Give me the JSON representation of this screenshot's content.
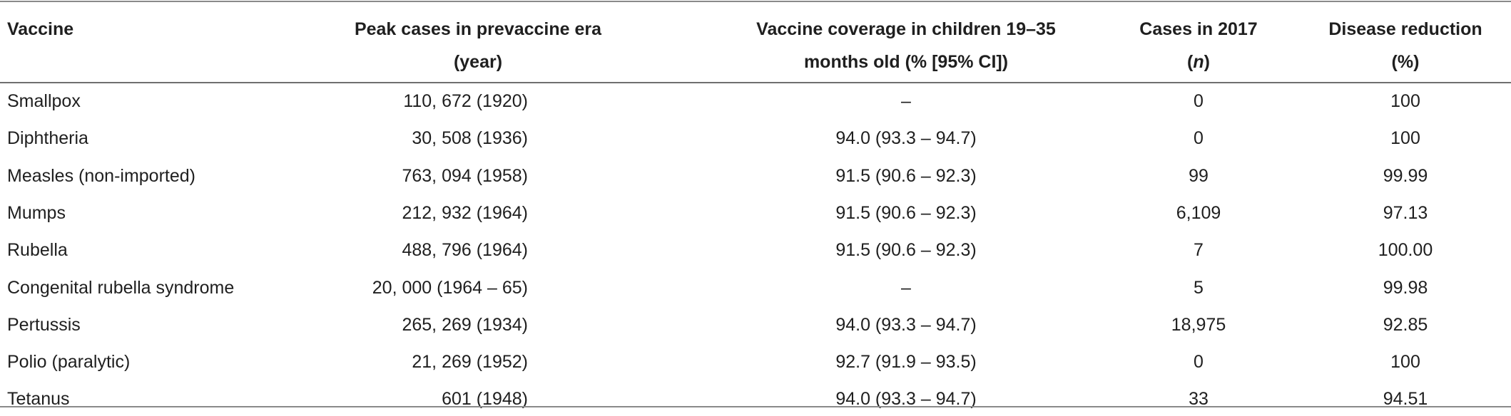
{
  "table": {
    "headers": {
      "vaccine": "Vaccine",
      "peak_line1": "Peak cases in prevaccine era",
      "peak_line2": "(year)",
      "coverage_line1": "Vaccine coverage in children 19–35",
      "coverage_line2": "months old (% [95% CI])",
      "cases_line1": "Cases in 2017",
      "cases_line2": "n",
      "reduction_line1": "Disease reduction",
      "reduction_line2": "(%)"
    },
    "rows": [
      {
        "vaccine": "Smallpox",
        "peak": "110, 672 (1920)",
        "coverage": "–",
        "cases": "0",
        "reduction": "100"
      },
      {
        "vaccine": "Diphtheria",
        "peak": "30, 508 (1936)",
        "coverage": "94.0 (93.3 – 94.7)",
        "cases": "0",
        "reduction": "100"
      },
      {
        "vaccine": "Measles (non-imported)",
        "peak": "763, 094 (1958)",
        "coverage": "91.5 (90.6 – 92.3)",
        "cases": "99",
        "reduction": "99.99"
      },
      {
        "vaccine": "Mumps",
        "peak": "212, 932 (1964)",
        "coverage": "91.5 (90.6 – 92.3)",
        "cases": "6,109",
        "reduction": "97.13"
      },
      {
        "vaccine": "Rubella",
        "peak": "488, 796 (1964)",
        "coverage": "91.5 (90.6 – 92.3)",
        "cases": "7",
        "reduction": "100.00"
      },
      {
        "vaccine": "Congenital rubella syndrome",
        "peak": "20, 000 (1964 – 65)",
        "coverage": "–",
        "cases": "5",
        "reduction": "99.98"
      },
      {
        "vaccine": "Pertussis",
        "peak": "265, 269 (1934)",
        "coverage": "94.0 (93.3 – 94.7)",
        "cases": "18,975",
        "reduction": "92.85"
      },
      {
        "vaccine": "Polio (paralytic)",
        "peak": "21, 269 (1952)",
        "coverage": "92.7 (91.9 – 93.5)",
        "cases": "0",
        "reduction": "100"
      },
      {
        "vaccine": "Tetanus",
        "peak": "601 (1948)",
        "coverage": "94.0 (93.3 – 94.7)",
        "cases": "33",
        "reduction": "94.51"
      }
    ]
  }
}
